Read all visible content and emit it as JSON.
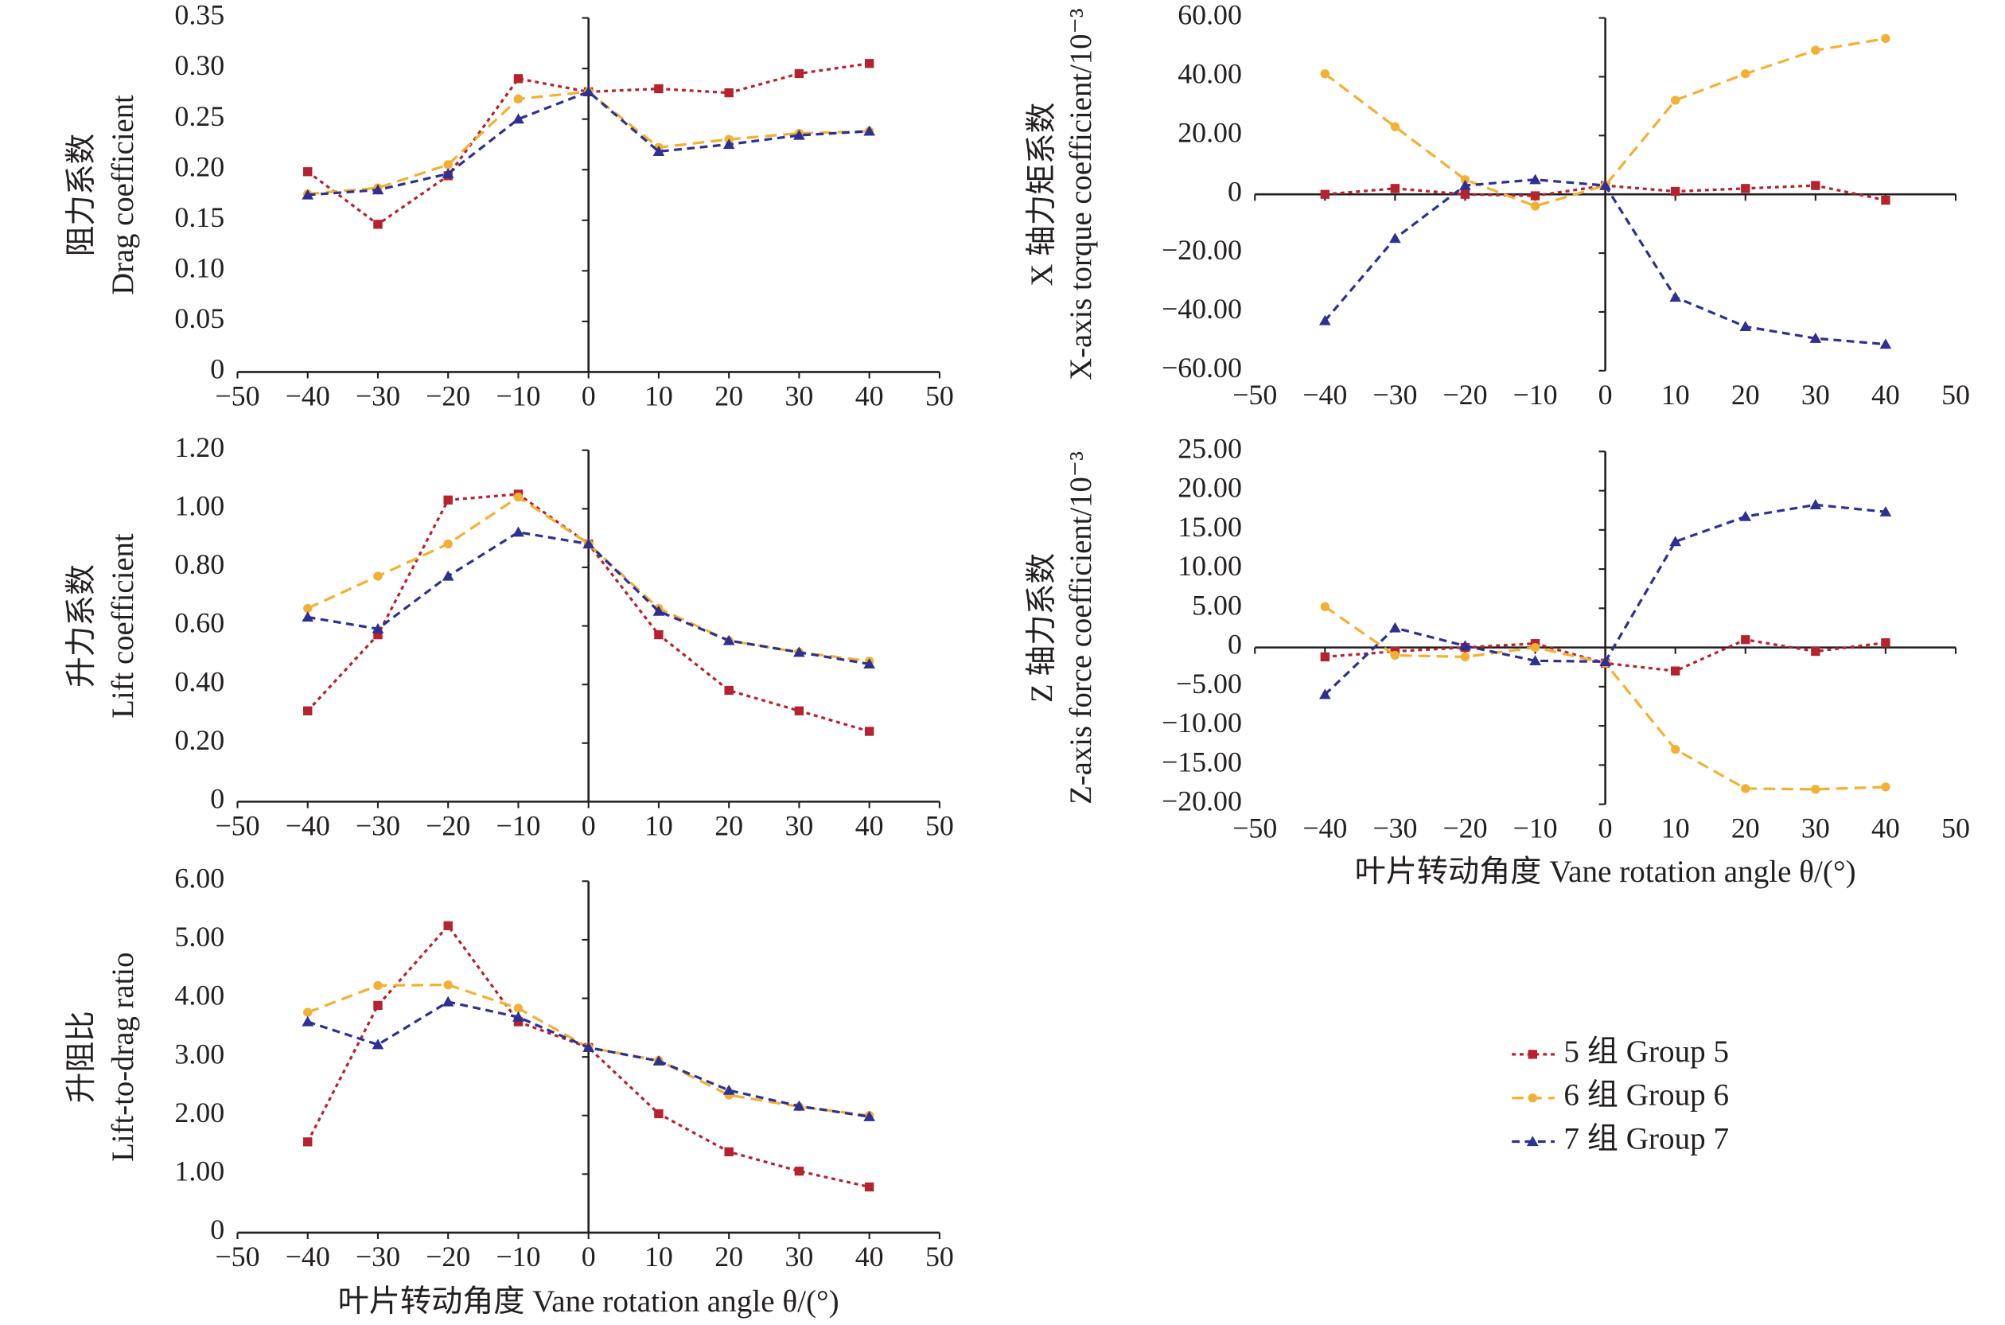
{
  "chart_data": [
    {
      "type": "line",
      "ylabel": [
        "阻力系数",
        "Drag coefficient"
      ],
      "x": [
        -40,
        -30,
        -20,
        -10,
        0,
        10,
        20,
        30,
        40
      ],
      "xlim": [
        -50,
        50
      ],
      "xticks": [
        {
          "value": -50,
          "label": "−50"
        },
        {
          "value": -40,
          "label": "−40"
        },
        {
          "value": -30,
          "label": "−30"
        },
        {
          "value": -20,
          "label": "−20"
        },
        {
          "value": -10,
          "label": "−10"
        },
        0,
        10,
        20,
        30,
        40,
        50
      ],
      "ylim": [
        0,
        0.35
      ],
      "yticks": [
        0,
        0.05,
        {
          "value": 0.1,
          "label": "0.10"
        },
        0.15,
        {
          "value": 0.2,
          "label": "0.20"
        },
        0.25,
        {
          "value": 0.3,
          "label": "0.30"
        },
        0.35
      ],
      "series": [
        {
          "name": "5 组 Group 5",
          "color": "#b5232f",
          "marker": "square",
          "values": [
            0.198,
            0.146,
            0.194,
            0.29,
            0.277,
            0.28,
            0.276,
            0.295,
            0.305
          ]
        },
        {
          "name": "6 组 Group 6",
          "color": "#f2b134",
          "marker": "circle",
          "values": [
            0.176,
            0.182,
            0.205,
            0.27,
            0.277,
            0.222,
            0.23,
            0.236,
            0.238
          ]
        },
        {
          "name": "7 组 Group 7",
          "color": "#2e3192",
          "marker": "triangle",
          "values": [
            0.175,
            0.18,
            0.196,
            0.25,
            0.277,
            0.218,
            0.225,
            0.234,
            0.238
          ]
        }
      ]
    },
    {
      "type": "line",
      "ylabel": [
        "升力系数",
        "Lift coefficient"
      ],
      "x": [
        -40,
        -30,
        -20,
        -10,
        0,
        10,
        20,
        30,
        40
      ],
      "xlim": [
        -50,
        50
      ],
      "xticks": [
        {
          "value": -50,
          "label": "−50"
        },
        {
          "value": -40,
          "label": "−40"
        },
        {
          "value": -30,
          "label": "−30"
        },
        {
          "value": -20,
          "label": "−20"
        },
        {
          "value": -10,
          "label": "−10"
        },
        0,
        10,
        20,
        30,
        40,
        50
      ],
      "ylim": [
        0,
        1.2
      ],
      "yticks": [
        0,
        {
          "value": 0.2,
          "label": "0.20"
        },
        {
          "value": 0.4,
          "label": "0.40"
        },
        {
          "value": 0.6,
          "label": "0.60"
        },
        {
          "value": 0.8,
          "label": "0.80"
        },
        {
          "value": 1,
          "label": "1.00"
        },
        {
          "value": 1.2,
          "label": "1.20"
        }
      ],
      "series": [
        {
          "color": "#b5232f",
          "marker": "square",
          "values": [
            0.31,
            0.57,
            1.03,
            1.05,
            0.88,
            0.57,
            0.38,
            0.31,
            0.24
          ]
        },
        {
          "color": "#f2b134",
          "marker": "circle",
          "values": [
            0.66,
            0.77,
            0.88,
            1.04,
            0.88,
            0.66,
            0.55,
            0.51,
            0.48
          ]
        },
        {
          "color": "#2e3192",
          "marker": "triangle",
          "values": [
            0.63,
            0.59,
            0.77,
            0.92,
            0.88,
            0.65,
            0.55,
            0.51,
            0.47
          ]
        }
      ]
    },
    {
      "type": "line",
      "ylabel": [
        "升阻比",
        "Lift-to-drag ratio"
      ],
      "xlabel": "叶片转动角度 Vane rotation angle θ/(°)",
      "x": [
        -40,
        -30,
        -20,
        -10,
        0,
        10,
        20,
        30,
        40
      ],
      "xlim": [
        -50,
        50
      ],
      "xticks": [
        {
          "value": -50,
          "label": "−50"
        },
        {
          "value": -40,
          "label": "−40"
        },
        {
          "value": -30,
          "label": "−30"
        },
        {
          "value": -20,
          "label": "−20"
        },
        {
          "value": -10,
          "label": "−10"
        },
        0,
        10,
        20,
        30,
        40,
        50
      ],
      "ylim": [
        0,
        6
      ],
      "yticks": [
        0,
        {
          "value": 1,
          "label": "1.00"
        },
        {
          "value": 2,
          "label": "2.00"
        },
        {
          "value": 3,
          "label": "3.00"
        },
        {
          "value": 4,
          "label": "4.00"
        },
        {
          "value": 5,
          "label": "5.00"
        },
        {
          "value": 6,
          "label": "6.00"
        }
      ],
      "series": [
        {
          "color": "#b5232f",
          "marker": "square",
          "values": [
            1.55,
            3.88,
            5.24,
            3.6,
            3.16,
            2.03,
            1.38,
            1.05,
            0.78
          ]
        },
        {
          "color": "#f2b134",
          "marker": "circle",
          "values": [
            3.76,
            4.22,
            4.23,
            3.83,
            3.16,
            2.94,
            2.35,
            2.15,
            2.0
          ]
        },
        {
          "color": "#2e3192",
          "marker": "triangle",
          "values": [
            3.6,
            3.21,
            3.94,
            3.68,
            3.16,
            2.93,
            2.43,
            2.16,
            1.98
          ]
        }
      ]
    },
    {
      "type": "line",
      "ylabel": [
        "X 轴力矩系数",
        "X-axis torque coefficient/10⁻³"
      ],
      "x": [
        -40,
        -30,
        -20,
        -10,
        0,
        10,
        20,
        30,
        40
      ],
      "xlim": [
        -50,
        50
      ],
      "xticks": [
        {
          "value": -50,
          "label": "−50"
        },
        {
          "value": -40,
          "label": "−40"
        },
        {
          "value": -30,
          "label": "−30"
        },
        {
          "value": -20,
          "label": "−20"
        },
        {
          "value": -10,
          "label": "−10"
        },
        0,
        10,
        20,
        30,
        40,
        50
      ],
      "ylim": [
        -60,
        60
      ],
      "yticks": [
        {
          "value": -60,
          "label": "−60.00"
        },
        {
          "value": -40,
          "label": "−40.00"
        },
        {
          "value": -20,
          "label": "−20.00"
        },
        0,
        {
          "value": 20,
          "label": "20.00"
        },
        {
          "value": 40,
          "label": "40.00"
        },
        {
          "value": 60,
          "label": "60.00"
        }
      ],
      "series": [
        {
          "color": "#b5232f",
          "marker": "square",
          "values": [
            0,
            2,
            0,
            -0.5,
            3,
            1,
            2,
            3,
            -2
          ]
        },
        {
          "color": "#f2b134",
          "marker": "circle",
          "values": [
            41,
            23,
            5,
            -4,
            3,
            32,
            41,
            49,
            53
          ]
        },
        {
          "color": "#2e3192",
          "marker": "triangle",
          "values": [
            -43,
            -15,
            3,
            5,
            3,
            -35,
            -45,
            -49,
            -51
          ]
        }
      ]
    },
    {
      "type": "line",
      "ylabel": [
        "Z 轴力系数",
        "Z-axis force coefficient/10⁻³"
      ],
      "xlabel": "叶片转动角度 Vane rotation angle θ/(°)",
      "x": [
        -40,
        -30,
        -20,
        -10,
        0,
        10,
        20,
        30,
        40
      ],
      "xlim": [
        -50,
        50
      ],
      "xticks": [
        {
          "value": -50,
          "label": "−50"
        },
        {
          "value": -40,
          "label": "−40"
        },
        {
          "value": -30,
          "label": "−30"
        },
        {
          "value": -20,
          "label": "−20"
        },
        {
          "value": -10,
          "label": "−10"
        },
        0,
        10,
        20,
        30,
        40,
        50
      ],
      "ylim": [
        -20,
        25
      ],
      "yticks": [
        {
          "value": -20,
          "label": "−20.00"
        },
        {
          "value": -15,
          "label": "−15.00"
        },
        {
          "value": -10,
          "label": "−10.00"
        },
        {
          "value": -5,
          "label": "−5.00"
        },
        0,
        {
          "value": 5,
          "label": "5.00"
        },
        {
          "value": 10,
          "label": "10.00"
        },
        {
          "value": 15,
          "label": "15.00"
        },
        {
          "value": 20,
          "label": "20.00"
        },
        {
          "value": 25,
          "label": "25.00"
        }
      ],
      "series": [
        {
          "color": "#b5232f",
          "marker": "square",
          "values": [
            -1.2,
            -0.5,
            0,
            0.5,
            -2,
            -3,
            1,
            -0.5,
            0.6
          ]
        },
        {
          "color": "#f2b134",
          "marker": "circle",
          "values": [
            5.2,
            -1,
            -1.2,
            0,
            -2,
            -13,
            -18,
            -18.1,
            -17.8
          ]
        },
        {
          "color": "#2e3192",
          "marker": "triangle",
          "values": [
            -6,
            2.5,
            0.2,
            -1.7,
            -1.8,
            13.5,
            16.7,
            18.2,
            17.3
          ]
        }
      ]
    }
  ]
}
